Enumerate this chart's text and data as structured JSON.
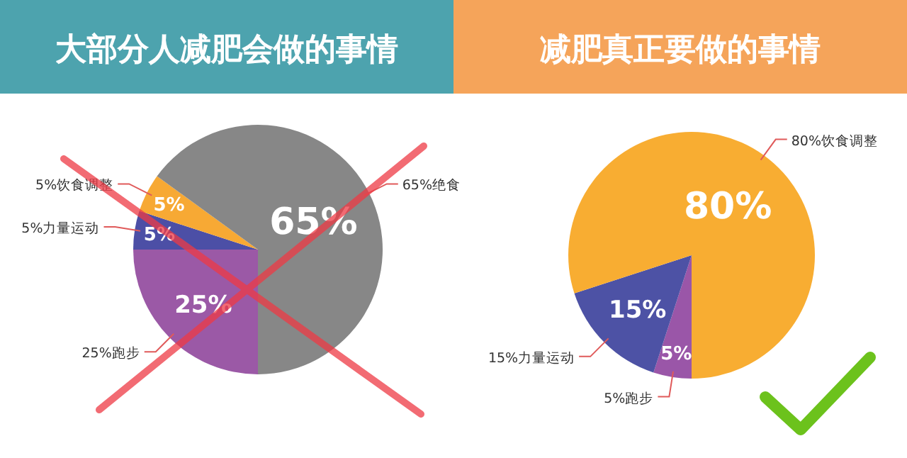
{
  "chart_data": [
    {
      "type": "pie",
      "title": "大部分人减肥会做的事情",
      "categories": [
        "25%跑步",
        "5%力量运动",
        "5%饮食调整",
        "65%绝食"
      ],
      "values": [
        25,
        5,
        5,
        65
      ],
      "value_labels": [
        "25%",
        "5%",
        "5%",
        "65%"
      ],
      "colors": [
        "#9b59a6",
        "#4c4fa6",
        "#f7a934",
        "#878787"
      ]
    },
    {
      "type": "pie",
      "title": "减肥真正要做的事情",
      "categories": [
        "5%跑步",
        "15%力量运动",
        "80%饮食调整"
      ],
      "values": [
        5,
        15,
        80
      ],
      "value_labels": [
        "5%",
        "15%",
        "80%"
      ],
      "colors": [
        "#9a56a8",
        "#4d52a5",
        "#f8ad32"
      ]
    }
  ]
}
